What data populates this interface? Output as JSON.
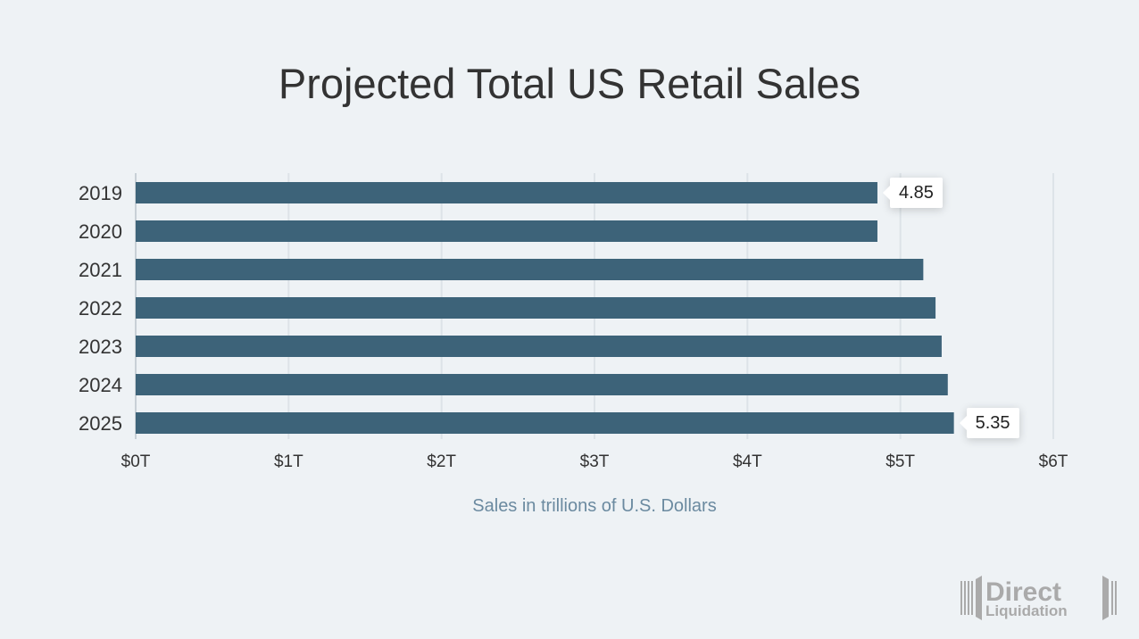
{
  "chart_data": {
    "type": "bar",
    "orientation": "horizontal",
    "title": "Projected Total US Retail Sales",
    "xlabel": "Sales in trillions of U.S. Dollars",
    "ylabel": "",
    "categories": [
      "2019",
      "2020",
      "2021",
      "2022",
      "2023",
      "2024",
      "2025"
    ],
    "values": [
      4.85,
      4.85,
      5.15,
      5.23,
      5.27,
      5.31,
      5.35
    ],
    "xlim": [
      0,
      6
    ],
    "xticks": [
      0,
      1,
      2,
      3,
      4,
      5,
      6
    ],
    "xtick_labels": [
      "$0T",
      "$1T",
      "$2T",
      "$3T",
      "$4T",
      "$5T",
      "$6T"
    ],
    "data_labels": [
      {
        "category": "2019",
        "text": "4.85"
      },
      {
        "category": "2025",
        "text": "5.35"
      }
    ],
    "grid": "vertical",
    "bar_color": "#3d6379"
  },
  "logo": {
    "line1": "Direct",
    "line2": "Liquidation"
  }
}
